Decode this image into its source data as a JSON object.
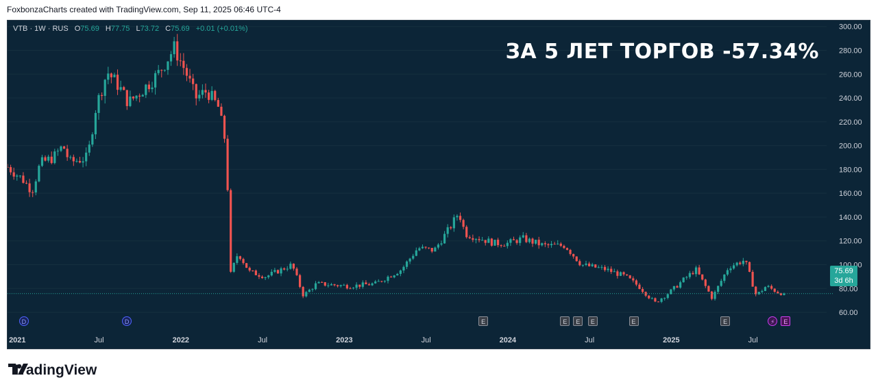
{
  "attribution": "FoxbonzaCharts created with TradingView.com, Sep 11, 2025 06:46 UTC-4",
  "legend": {
    "symbol": "VTB · 1W · RUS",
    "o_label": "O",
    "o_value": "75.69",
    "h_label": "H",
    "h_value": "77.75",
    "l_label": "L",
    "l_value": "73.72",
    "c_label": "C",
    "c_value": "75.69",
    "change": "+0.01 (+0.01%)"
  },
  "annotation": "ЗА 5 ЛЕТ ТОРГОВ -57.34%",
  "price_label": {
    "value": "75.69",
    "countdown": "3d 6h"
  },
  "footer": {
    "brand": "TradingView"
  },
  "colors": {
    "up": "#26a69a",
    "down": "#ef5350",
    "background": "#0c2537",
    "text": "#d1d4dc"
  },
  "chart_data": {
    "type": "candlestick",
    "y_axis": {
      "min": 52,
      "max": 305,
      "ticks": [
        60,
        80,
        100,
        120,
        140,
        160,
        180,
        200,
        220,
        240,
        260,
        280,
        300
      ],
      "tick_labels": [
        "60.00",
        "80.00",
        "100.00",
        "120.00",
        "140.00",
        "160.00",
        "180.00",
        "200.00",
        "220.00",
        "240.00",
        "260.00",
        "280.00",
        "300.00"
      ]
    },
    "x_axis": {
      "start": 2020.94,
      "end": 2025.95,
      "ticks": [
        {
          "t": 2021.0,
          "label": "2021",
          "major": true
        },
        {
          "t": 2021.5,
          "label": "Jul",
          "major": false
        },
        {
          "t": 2022.0,
          "label": "2022",
          "major": true
        },
        {
          "t": 2022.5,
          "label": "Jul",
          "major": false
        },
        {
          "t": 2023.0,
          "label": "2023",
          "major": true
        },
        {
          "t": 2023.5,
          "label": "Jul",
          "major": false
        },
        {
          "t": 2024.0,
          "label": "2024",
          "major": true
        },
        {
          "t": 2024.5,
          "label": "Jul",
          "major": false
        },
        {
          "t": 2025.0,
          "label": "2025",
          "major": true
        },
        {
          "t": 2025.5,
          "label": "Jul",
          "major": false
        }
      ]
    },
    "last_price": 75.69,
    "anchors": [
      [
        2020.94,
        182
      ],
      [
        2021.03,
        172
      ],
      [
        2021.09,
        162
      ],
      [
        2021.14,
        185
      ],
      [
        2021.22,
        190
      ],
      [
        2021.28,
        200
      ],
      [
        2021.32,
        186
      ],
      [
        2021.43,
        190
      ],
      [
        2021.48,
        232
      ],
      [
        2021.55,
        262
      ],
      [
        2021.62,
        250
      ],
      [
        2021.68,
        236
      ],
      [
        2021.76,
        246
      ],
      [
        2021.86,
        260
      ],
      [
        2021.96,
        282
      ],
      [
        2022.03,
        262
      ],
      [
        2022.09,
        240
      ],
      [
        2022.16,
        246
      ],
      [
        2022.23,
        232
      ],
      [
        2022.28,
        198
      ],
      [
        2022.3,
        90
      ],
      [
        2022.35,
        110
      ],
      [
        2022.42,
        94
      ],
      [
        2022.52,
        90
      ],
      [
        2022.68,
        100
      ],
      [
        2022.75,
        74
      ],
      [
        2022.83,
        84
      ],
      [
        2023.03,
        82
      ],
      [
        2023.19,
        84
      ],
      [
        2023.35,
        96
      ],
      [
        2023.45,
        114
      ],
      [
        2023.55,
        112
      ],
      [
        2023.65,
        132
      ],
      [
        2023.7,
        144
      ],
      [
        2023.74,
        126
      ],
      [
        2023.92,
        118
      ],
      [
        2024.0,
        118
      ],
      [
        2024.09,
        122
      ],
      [
        2024.22,
        116
      ],
      [
        2024.35,
        116
      ],
      [
        2024.45,
        100
      ],
      [
        2024.6,
        96
      ],
      [
        2024.72,
        90
      ],
      [
        2024.8,
        82
      ],
      [
        2024.9,
        68
      ],
      [
        2025.0,
        78
      ],
      [
        2025.08,
        88
      ],
      [
        2025.15,
        96
      ],
      [
        2025.25,
        72
      ],
      [
        2025.35,
        98
      ],
      [
        2025.45,
        104
      ],
      [
        2025.52,
        74
      ],
      [
        2025.58,
        82
      ],
      [
        2025.65,
        77
      ],
      [
        2025.69,
        75.69
      ]
    ],
    "events": [
      {
        "type": "D",
        "t": 2021.04
      },
      {
        "type": "D",
        "t": 2021.67
      },
      {
        "type": "E",
        "t": 2023.85
      },
      {
        "type": "E",
        "t": 2024.35
      },
      {
        "type": "E",
        "t": 2024.43
      },
      {
        "type": "E",
        "t": 2024.52
      },
      {
        "type": "E",
        "t": 2024.77
      },
      {
        "type": "E",
        "t": 2025.33
      },
      {
        "type": "bolt",
        "t": 2025.62
      },
      {
        "type": "E2",
        "t": 2025.7
      }
    ]
  }
}
